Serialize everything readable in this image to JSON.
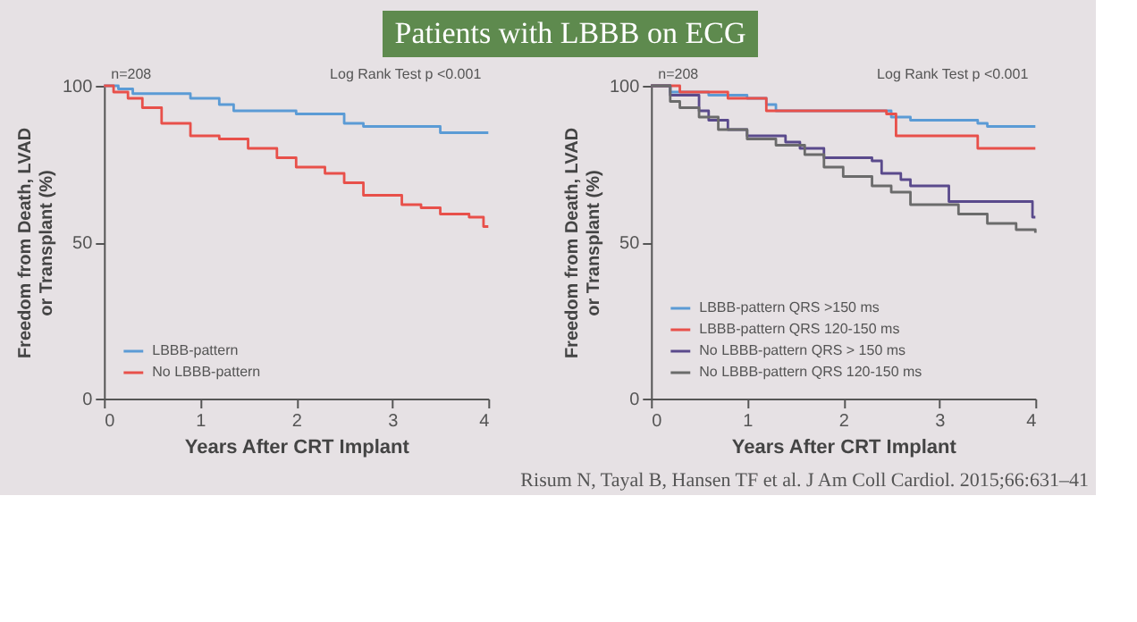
{
  "chart_data": [
    {
      "type": "step",
      "title": "Patients with LBBB on ECG",
      "xlabel": "Years After CRT Implant",
      "ylabel": "Freedom from Death, LVAD or Transplant (%)",
      "xlim": [
        0,
        4
      ],
      "ylim": [
        0,
        100
      ],
      "xticks": [
        0,
        1,
        2,
        3,
        4
      ],
      "yticks": [
        0,
        50,
        100
      ],
      "grid": false,
      "legend": "bottom left",
      "line_style": "solid",
      "marker": "none",
      "annotations": [
        "n=208",
        "Log Rank Test p <0.001"
      ],
      "series": [
        {
          "name": "LBBB-pattern",
          "color": "#5b9bd5",
          "x": [
            0,
            0.15,
            0.3,
            0.9,
            1.2,
            1.35,
            2.0,
            2.5,
            2.7,
            3.5,
            4
          ],
          "values": [
            100,
            99,
            97.5,
            96,
            94,
            92,
            91,
            88,
            87,
            85,
            85
          ]
        },
        {
          "name": "No LBBB-pattern",
          "color": "#e8504a",
          "x": [
            0,
            0.1,
            0.25,
            0.4,
            0.6,
            0.9,
            1.2,
            1.5,
            1.8,
            2.0,
            2.3,
            2.5,
            2.7,
            3.1,
            3.3,
            3.5,
            3.8,
            3.95,
            4
          ],
          "values": [
            100,
            98,
            96,
            93,
            88,
            84,
            83,
            80,
            77,
            74,
            72,
            69,
            65,
            62,
            61,
            59,
            58,
            55,
            55
          ]
        }
      ]
    },
    {
      "type": "step",
      "xlabel": "Years After CRT Implant",
      "ylabel": "Freedom from Death, LVAD or Transplant (%)",
      "xlim": [
        0,
        4
      ],
      "ylim": [
        0,
        100
      ],
      "xticks": [
        0,
        1,
        2,
        3,
        4
      ],
      "yticks": [
        0,
        50,
        100
      ],
      "grid": false,
      "legend": "bottom left",
      "line_style": "solid",
      "marker": "none",
      "annotations": [
        "n=208",
        "Log Rank Test p <0.001",
        "Risum N, Tayal B, Hansen TF et al. J Am Coll Cardiol. 2015;66:631–41"
      ],
      "series": [
        {
          "name": "LBBB-pattern QRS >150 ms",
          "color": "#5b9bd5",
          "x": [
            0,
            0.2,
            0.6,
            1.0,
            1.2,
            1.3,
            2.5,
            2.7,
            3.4,
            3.5,
            4
          ],
          "values": [
            100,
            98,
            97,
            96,
            94,
            92,
            90,
            89,
            88,
            87,
            87
          ]
        },
        {
          "name": "LBBB-pattern QRS 120-150 ms",
          "color": "#e8504a",
          "x": [
            0,
            0.3,
            0.8,
            1.2,
            2.45,
            2.55,
            3.4,
            4
          ],
          "values": [
            100,
            98,
            96,
            92,
            91,
            84,
            80,
            80
          ]
        },
        {
          "name": "No LBBB-pattern QRS > 150 ms",
          "color": "#5a4a8c",
          "x": [
            0,
            0.2,
            0.5,
            0.6,
            0.8,
            1.0,
            1.4,
            1.55,
            1.8,
            2.3,
            2.4,
            2.6,
            2.7,
            3.1,
            3.97,
            4
          ],
          "values": [
            100,
            97,
            92,
            89,
            86,
            84,
            82,
            80,
            77,
            76,
            72,
            70,
            68,
            63,
            58,
            58
          ]
        },
        {
          "name": "No LBBB-pattern QRS 120-150 ms",
          "color": "#6b6b6b",
          "x": [
            0,
            0.2,
            0.3,
            0.5,
            0.7,
            1.0,
            1.3,
            1.6,
            1.8,
            2.0,
            2.3,
            2.5,
            2.7,
            3.2,
            3.5,
            3.8,
            4
          ],
          "values": [
            100,
            95,
            93,
            90,
            86,
            83,
            81,
            78,
            74,
            71,
            68,
            66,
            62,
            59,
            56,
            54,
            53
          ]
        }
      ]
    }
  ]
}
